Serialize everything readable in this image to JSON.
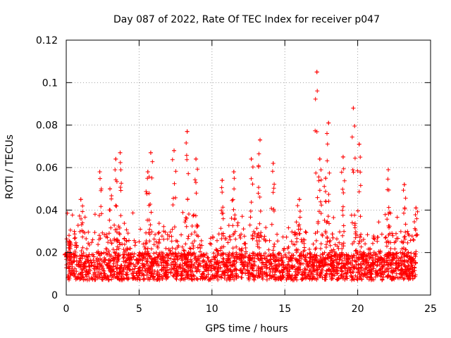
{
  "chart_data": {
    "type": "scatter",
    "title": "Day 087 of 2022, Rate Of TEC Index for receiver p047",
    "xlabel": "GPS time / hours",
    "ylabel": "ROTI / TECUs",
    "xlim": [
      0,
      25
    ],
    "ylim": [
      0,
      0.12
    ],
    "x_ticks": [
      0,
      5,
      10,
      15,
      20,
      25
    ],
    "x_tick_labels": [
      "0",
      "5",
      "10",
      "15",
      "20",
      "25"
    ],
    "y_ticks": [
      0,
      0.02,
      0.04,
      0.06,
      0.08,
      0.1,
      0.12
    ],
    "y_tick_labels": [
      "0",
      "0.02",
      "0.04",
      "0.06",
      "0.08",
      "0.1",
      "0.12"
    ],
    "grid": true,
    "marker": "+",
    "series_color": "#ff0000",
    "series": [
      {
        "name": "p047",
        "x_range_hours": [
          0,
          24
        ],
        "baseline_min": 0.007,
        "baseline_max": 0.02,
        "typical_max": 0.04,
        "peaks": [
          {
            "x": 0.0,
            "y": 0.018
          },
          {
            "x": 0.25,
            "y": 0.025
          },
          {
            "x": 1.0,
            "y": 0.045
          },
          {
            "x": 2.3,
            "y": 0.058
          },
          {
            "x": 3.0,
            "y": 0.05
          },
          {
            "x": 3.4,
            "y": 0.064
          },
          {
            "x": 3.7,
            "y": 0.067
          },
          {
            "x": 5.6,
            "y": 0.058
          },
          {
            "x": 5.8,
            "y": 0.067
          },
          {
            "x": 7.4,
            "y": 0.068
          },
          {
            "x": 8.3,
            "y": 0.077
          },
          {
            "x": 8.9,
            "y": 0.064
          },
          {
            "x": 10.7,
            "y": 0.054
          },
          {
            "x": 11.5,
            "y": 0.058
          },
          {
            "x": 12.7,
            "y": 0.064
          },
          {
            "x": 13.3,
            "y": 0.073
          },
          {
            "x": 14.2,
            "y": 0.062
          },
          {
            "x": 16.0,
            "y": 0.045
          },
          {
            "x": 17.2,
            "y": 0.105
          },
          {
            "x": 17.4,
            "y": 0.064
          },
          {
            "x": 17.8,
            "y": 0.055
          },
          {
            "x": 18.0,
            "y": 0.081
          },
          {
            "x": 19.0,
            "y": 0.065
          },
          {
            "x": 19.7,
            "y": 0.088
          },
          {
            "x": 20.1,
            "y": 0.071
          },
          {
            "x": 22.1,
            "y": 0.059
          },
          {
            "x": 23.2,
            "y": 0.052
          },
          {
            "x": 24.0,
            "y": 0.041
          }
        ]
      }
    ]
  }
}
